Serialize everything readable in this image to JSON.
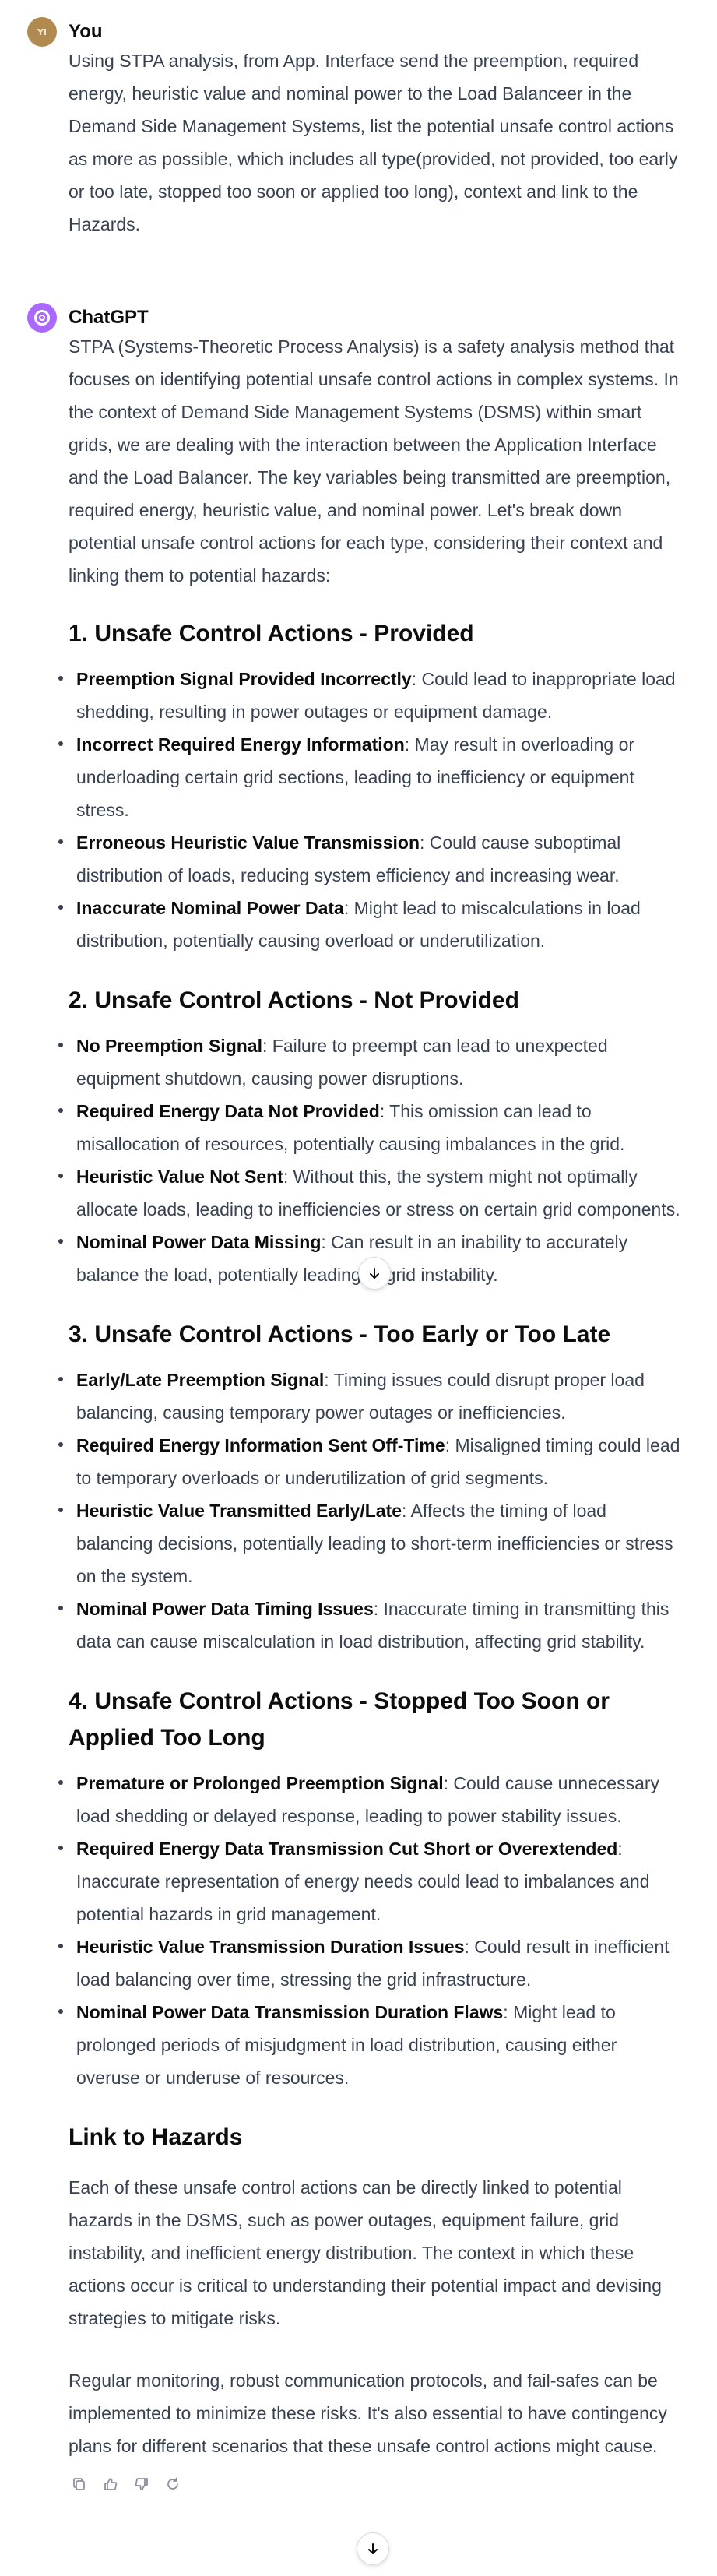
{
  "user_message": {
    "avatar_initials": "YI",
    "author": "You",
    "text": "Using STPA analysis, from App. Interface send the preemption, required energy, heuristic value and nominal power to the Load Balanceer in the Demand Side Management Systems, list the potential unsafe control actions as more as possible, which includes all type(provided, not provided, too early or too late, stopped too soon or applied too long), context and link to the Hazards."
  },
  "assistant_message": {
    "author": "ChatGPT",
    "intro": "STPA (Systems-Theoretic Process Analysis) is a safety analysis method that focuses on identifying potential unsafe control actions in complex systems. In the context of Demand Side Management Systems (DSMS) within smart grids, we are dealing with the interaction between the Application Interface and the Load Balancer. The key variables being transmitted are preemption, required energy, heuristic value, and nominal power. Let's break down potential unsafe control actions for each type, considering their context and linking them to potential hazards:",
    "sections": [
      {
        "heading": "1. Unsafe Control Actions - Provided",
        "items": [
          {
            "title": "Preemption Signal Provided Incorrectly",
            "text": ": Could lead to inappropriate load shedding, resulting in power outages or equipment damage."
          },
          {
            "title": "Incorrect Required Energy Information",
            "text": ": May result in overloading or underloading certain grid sections, leading to inefficiency or equipment stress."
          },
          {
            "title": "Erroneous Heuristic Value Transmission",
            "text": ": Could cause suboptimal distribution of loads, reducing system efficiency and increasing wear."
          },
          {
            "title": "Inaccurate Nominal Power Data",
            "text": ": Might lead to miscalculations in load distribution, potentially causing overload or underutilization."
          }
        ]
      },
      {
        "heading": "2. Unsafe Control Actions - Not Provided",
        "items": [
          {
            "title": "No Preemption Signal",
            "text": ": Failure to preempt can lead to unexpected equipment shutdown, causing power disruptions."
          },
          {
            "title": "Required Energy Data Not Provided",
            "text": ": This omission can lead to misallocation of resources, potentially causing imbalances in the grid."
          },
          {
            "title": "Heuristic Value Not Sent",
            "text": ": Without this, the system might not optimally allocate loads, leading to inefficiencies or stress on certain grid components."
          },
          {
            "title": "Nominal Power Data Missing",
            "text": ": Can result in an inability to accurately balance the load, potentially leading to grid instability."
          }
        ]
      },
      {
        "heading": "3. Unsafe Control Actions - Too Early or Too Late",
        "items": [
          {
            "title": "Early/Late Preemption Signal",
            "text": ": Timing issues could disrupt proper load balancing, causing temporary power outages or inefficiencies."
          },
          {
            "title": "Required Energy Information Sent Off-Time",
            "text": ": Misaligned timing could lead to temporary overloads or underutilization of grid segments."
          },
          {
            "title": "Heuristic Value Transmitted Early/Late",
            "text": ": Affects the timing of load balancing decisions, potentially leading to short-term inefficiencies or stress on the system."
          },
          {
            "title": "Nominal Power Data Timing Issues",
            "text": ": Inaccurate timing in transmitting this data can cause miscalculation in load distribution, affecting grid stability."
          }
        ]
      },
      {
        "heading": "4. Unsafe Control Actions - Stopped Too Soon or Applied Too Long",
        "items": [
          {
            "title": "Premature or Prolonged Preemption Signal",
            "text": ": Could cause unnecessary load shedding or delayed response, leading to power stability issues."
          },
          {
            "title": "Required Energy Data Transmission Cut Short or Overextended",
            "text": ": Inaccurate representation of energy needs could lead to imbalances and potential hazards in grid management."
          },
          {
            "title": "Heuristic Value Transmission Duration Issues",
            "text": ": Could result in inefficient load balancing over time, stressing the grid infrastructure."
          },
          {
            "title": "Nominal Power Data Transmission Duration Flaws",
            "text": ": Might lead to prolonged periods of misjudgment in load distribution, causing either overuse or underuse of resources."
          }
        ]
      }
    ],
    "hazards_heading": "Link to Hazards",
    "hazards_text": "Each of these unsafe control actions can be directly linked to potential hazards in the DSMS, such as power outages, equipment failure, grid instability, and inefficient energy distribution. The context in which these actions occur is critical to understanding their potential impact and devising strategies to mitigate risks.",
    "closing_text": "Regular monitoring, robust communication protocols, and fail-safes can be implemented to minimize these risks. It's also essential to have contingency plans for different scenarios that these unsafe control actions might cause."
  },
  "icons": {
    "copy": "copy-icon",
    "thumbs_up": "thumbs-up-icon",
    "thumbs_down": "thumbs-down-icon",
    "regenerate": "regenerate-icon",
    "scroll_down": "arrow-down-icon"
  },
  "colors": {
    "user_avatar": "#b08a4f",
    "assistant_avatar": "#ab68ff",
    "text": "#374151",
    "heading": "#0d0d0d"
  }
}
